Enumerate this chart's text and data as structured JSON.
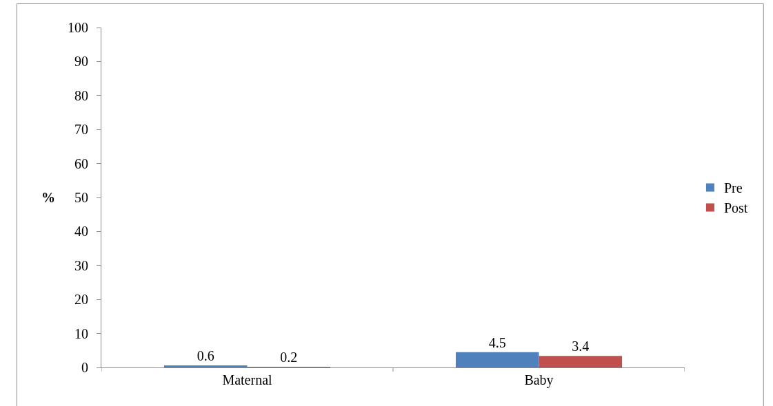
{
  "chart_data": {
    "type": "bar",
    "ylabel": "%",
    "categories": [
      "Maternal",
      "Baby"
    ],
    "series": [
      {
        "name": "Pre",
        "color": "#4f81bd",
        "values": [
          0.6,
          4.5
        ]
      },
      {
        "name": "Post",
        "color": "#c0504d",
        "values": [
          0.2,
          3.4
        ]
      }
    ],
    "ylim": [
      0,
      100
    ],
    "yticks": [
      0,
      10,
      20,
      30,
      40,
      50,
      60,
      70,
      80,
      90,
      100
    ],
    "data_labels": true,
    "legend": "right"
  }
}
